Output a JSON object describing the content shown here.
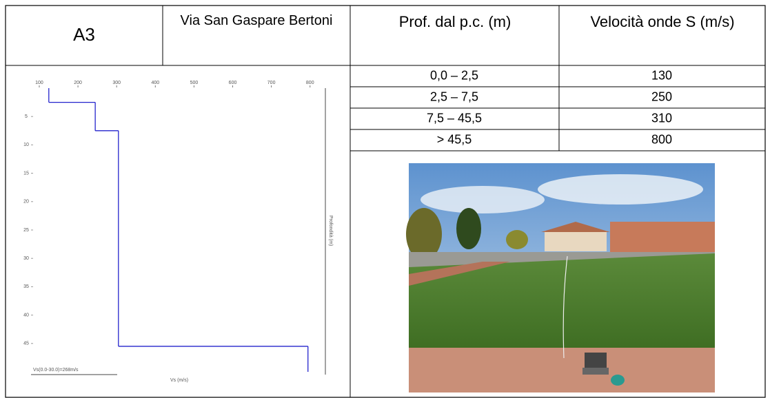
{
  "header": [
    "A3",
    "Via San Gaspare Bertoni",
    "Prof. dal p.c. (m)",
    "Velocità onde S (m/s)"
  ],
  "table": {
    "rows": [
      [
        "0,0 – 2,5",
        "130"
      ],
      [
        "2,5 – 7,5",
        "250"
      ],
      [
        "7,5 – 45,5",
        "310"
      ],
      [
        "> 45,5",
        "800"
      ]
    ]
  },
  "chart_data": {
    "type": "step",
    "x_label": "Vs (m/s)",
    "y_label": "Profondità (m)",
    "annotation": "Vs(0.0-30.0)=268m/s",
    "layer_tops": [
      0,
      2.5,
      7.5,
      45.5
    ],
    "velocities": [
      130,
      250,
      310,
      800
    ],
    "color": "#2222cc",
    "xlim": [
      84,
      845
    ],
    "ylim": [
      0,
      50
    ],
    "xticks": [
      100,
      200,
      300,
      400,
      500,
      600,
      700,
      800
    ],
    "yticks": [
      5,
      10,
      15,
      20,
      25,
      30,
      35,
      40,
      45
    ]
  }
}
